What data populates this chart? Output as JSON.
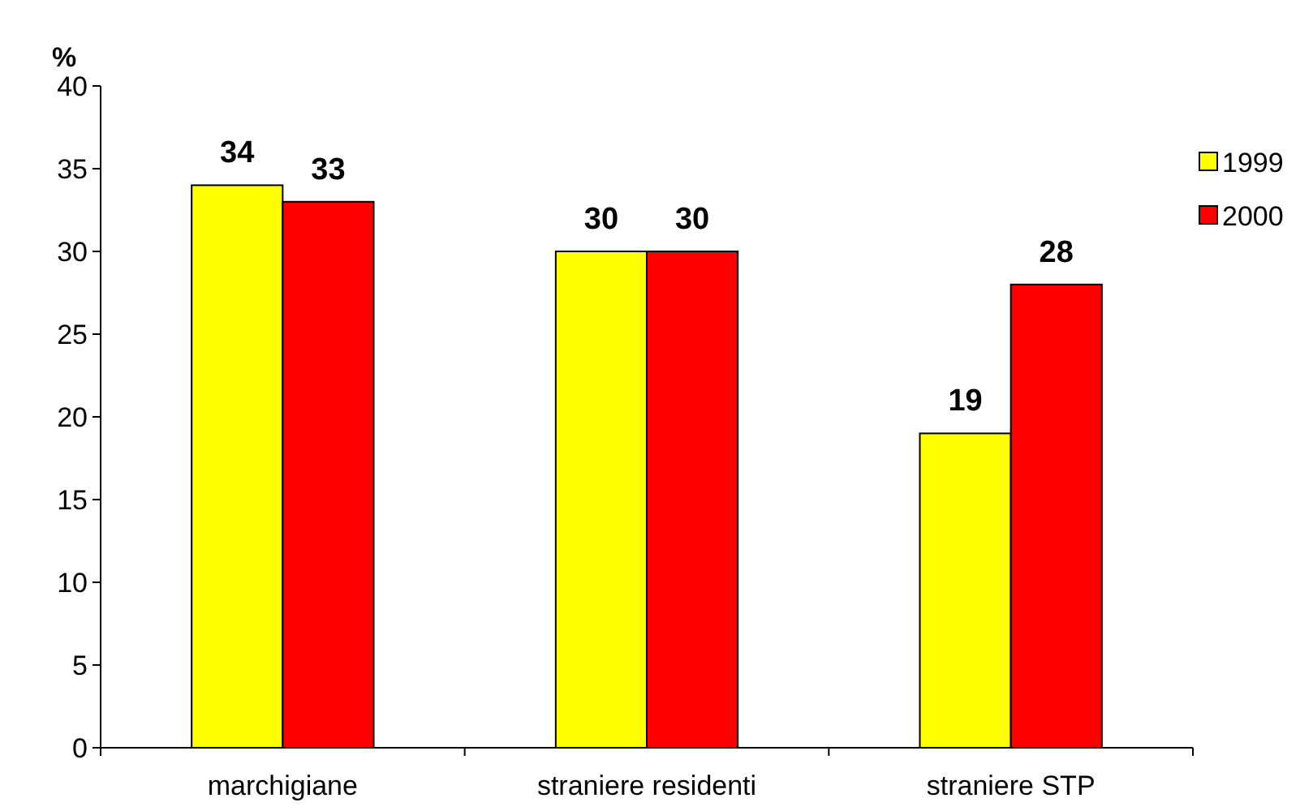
{
  "chart_data": {
    "type": "bar",
    "ylabel": "%",
    "categories": [
      "marchigiane",
      "straniere residenti",
      "straniere STP"
    ],
    "series": [
      {
        "name": "1999",
        "color": "#ffff00",
        "values": [
          34,
          30,
          19
        ]
      },
      {
        "name": "2000",
        "color": "#ff0000",
        "values": [
          33,
          30,
          28
        ]
      }
    ],
    "ylim": [
      0,
      40
    ],
    "yticks": [
      0,
      5,
      10,
      15,
      20,
      25,
      30,
      35,
      40
    ],
    "grid": false,
    "legend": "right",
    "data_labels": true
  }
}
